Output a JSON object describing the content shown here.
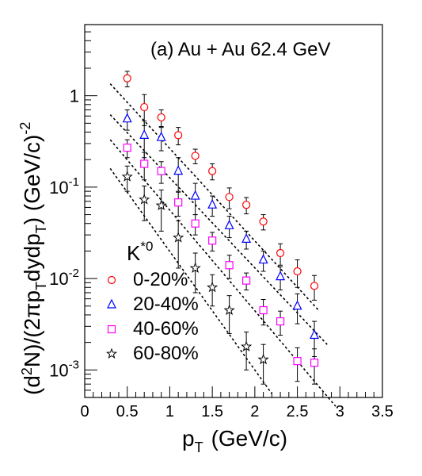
{
  "chart_data": {
    "type": "scatter",
    "annotation": "(a) Au + Au 62.4 GeV",
    "xlabel": "p_T  (GeV/c)",
    "ylabel": "(d^2N)/(2πp_T dydp_T)  (GeV/c)^-2",
    "xlim": [
      0,
      3.5
    ],
    "ylim": [
      0.0005,
      6
    ],
    "y_scale": "log",
    "x_ticks": [
      "0",
      "0.5",
      "1",
      "1.5",
      "2",
      "2.5",
      "3",
      "3.5"
    ],
    "y_ticks": [
      {
        "mantissa": "10",
        "exp": "-3",
        "value": 0.001
      },
      {
        "mantissa": "10",
        "exp": "-2",
        "value": 0.01
      },
      {
        "mantissa": "10",
        "exp": "-1",
        "value": 0.1
      },
      {
        "mantissa": "1",
        "exp": "",
        "value": 1
      }
    ],
    "legend": {
      "title_base": "K",
      "title_sup": "*0",
      "placement": "bottom-left"
    },
    "series": [
      {
        "name": "0-20%",
        "marker": "circle",
        "color": "#ff0000",
        "x": [
          0.5,
          0.7,
          0.9,
          1.1,
          1.3,
          1.5,
          1.7,
          1.9,
          2.1,
          2.3,
          2.5,
          2.7
        ],
        "y": [
          1.55,
          0.75,
          0.58,
          0.37,
          0.22,
          0.15,
          0.078,
          0.064,
          0.042,
          0.019,
          0.012,
          0.0083
        ],
        "err": [
          0.3,
          0.28,
          0.12,
          0.08,
          0.04,
          0.03,
          0.02,
          0.013,
          0.008,
          0.005,
          0.004,
          0.0025
        ],
        "fit_x": [
          0.3,
          2.75
        ],
        "fit_y": [
          1.35,
          0.0045
        ]
      },
      {
        "name": "20-40%",
        "marker": "triangle",
        "color": "#0000ff",
        "x": [
          0.5,
          0.7,
          0.9,
          1.1,
          1.3,
          1.5,
          1.7,
          1.9,
          2.1,
          2.3,
          2.5,
          2.7
        ],
        "y": [
          0.56,
          0.37,
          0.35,
          0.15,
          0.08,
          0.064,
          0.038,
          0.027,
          0.016,
          0.0105,
          0.005,
          0.0024
        ],
        "err": [
          0.14,
          0.16,
          0.1,
          0.06,
          0.03,
          0.016,
          0.01,
          0.006,
          0.004,
          0.003,
          0.0018,
          0.001
        ],
        "fit_x": [
          0.3,
          2.85
        ],
        "fit_y": [
          0.62,
          0.0019
        ]
      },
      {
        "name": "40-60%",
        "marker": "square",
        "color": "#ff00ff",
        "x": [
          0.5,
          0.7,
          0.9,
          1.1,
          1.3,
          1.5,
          1.7,
          1.9,
          2.1,
          2.3,
          2.5,
          2.7
        ],
        "y": [
          0.27,
          0.18,
          0.15,
          0.068,
          0.04,
          0.026,
          0.014,
          0.0095,
          0.0045,
          0.0034,
          0.00125,
          0.0012
        ],
        "err": [
          0.06,
          0.06,
          0.04,
          0.02,
          0.01,
          0.006,
          0.004,
          0.002,
          0.0014,
          0.001,
          0.0005,
          0.0005
        ],
        "fit_x": [
          0.3,
          2.95
        ],
        "fit_y": [
          0.33,
          0.0004
        ]
      },
      {
        "name": "60-80%",
        "marker": "star",
        "color": "#000000",
        "x": [
          0.5,
          0.7,
          0.9,
          1.1,
          1.3,
          1.5,
          1.7,
          1.9,
          2.1
        ],
        "y": [
          0.13,
          0.073,
          0.063,
          0.028,
          0.013,
          0.008,
          0.0045,
          0.0018,
          0.0013
        ],
        "err": [
          0.04,
          0.03,
          0.03,
          0.015,
          0.006,
          0.003,
          0.002,
          0.0008,
          0.0006
        ],
        "fit_x": [
          0.3,
          2.2
        ],
        "fit_y": [
          0.16,
          0.00055
        ]
      }
    ]
  }
}
